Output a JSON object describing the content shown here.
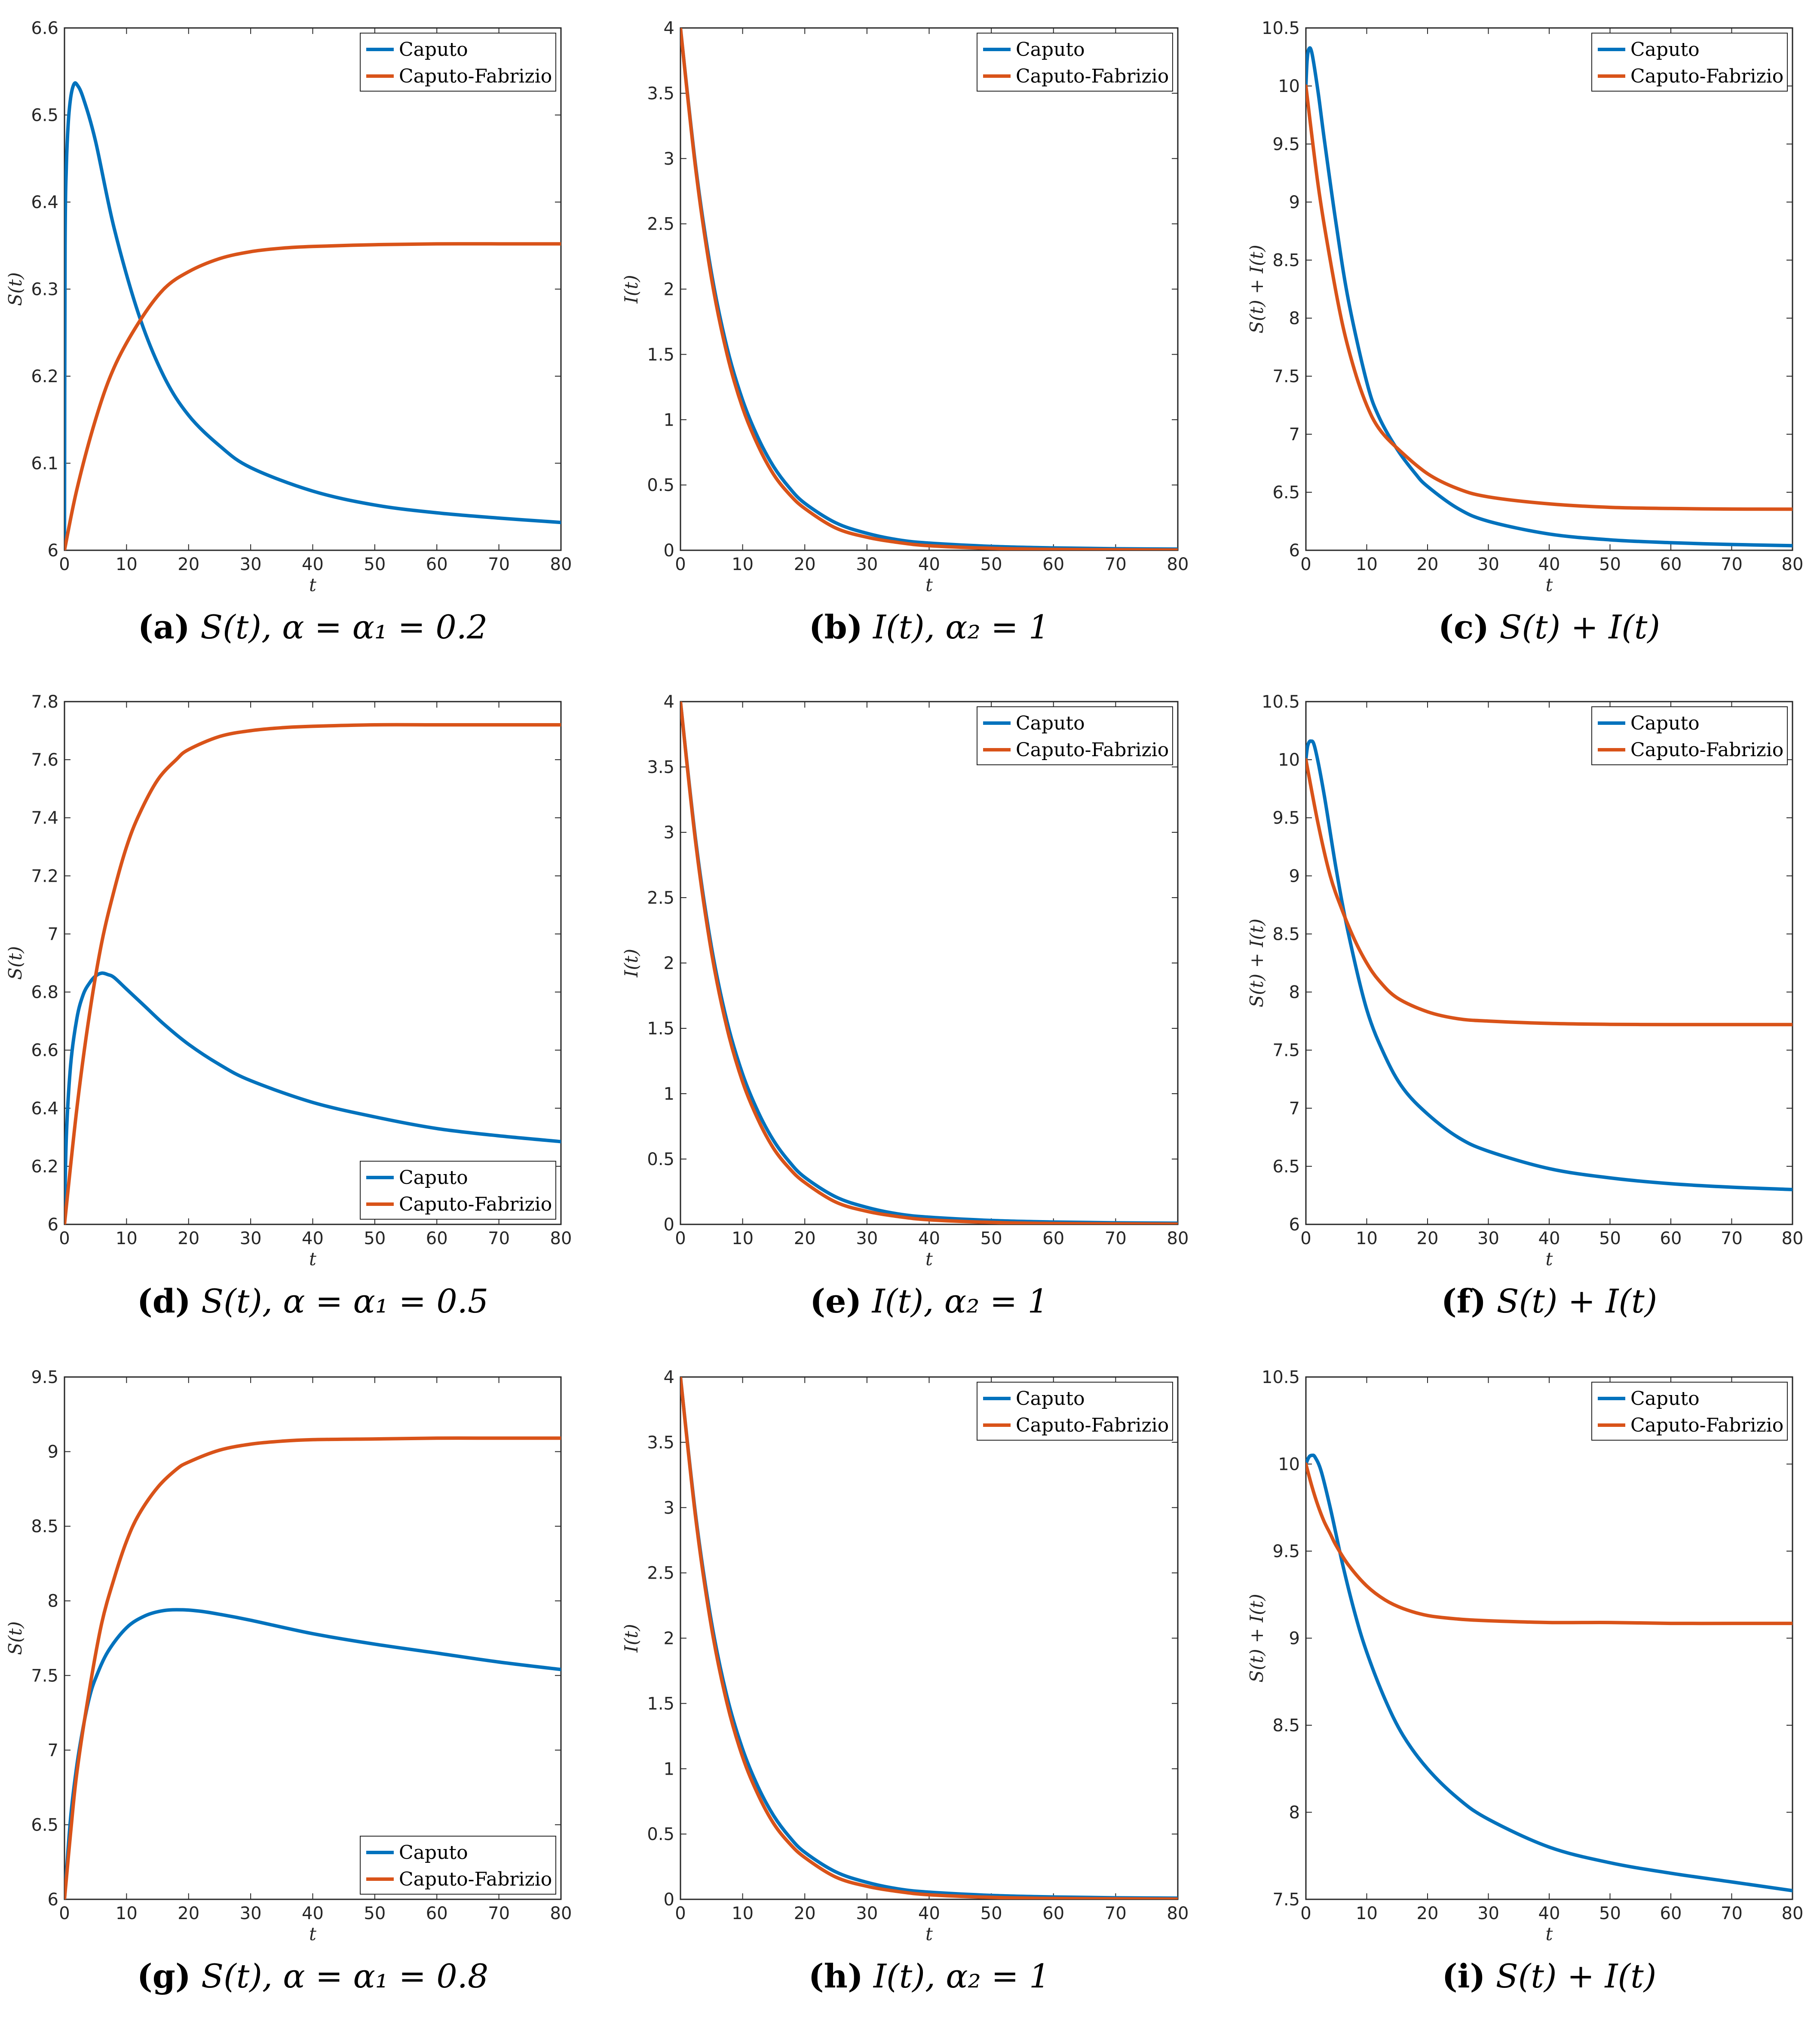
{
  "colors": {
    "caputo": "#0072BD",
    "caputo_fabrizio": "#D95319",
    "axis": "#262626"
  },
  "chart_data": [
    {
      "id": "a",
      "type": "line",
      "caption": {
        "label": "(a)",
        "text": "S(t), α = α₁ = 0.2"
      },
      "xlabel": "t",
      "ylabel": "S(t)",
      "xlim": [
        0,
        80
      ],
      "ylim": [
        6,
        6.6
      ],
      "xticks": [
        0,
        10,
        20,
        30,
        40,
        50,
        60,
        70,
        80
      ],
      "yticks": [
        6,
        6.1,
        6.2,
        6.3,
        6.4,
        6.5,
        6.6
      ],
      "legend": "top-right",
      "series": [
        {
          "name": "Caputo",
          "color": "#0072BD",
          "x": [
            0,
            0.1,
            0.3,
            0.6,
            1,
            1.5,
            2,
            3,
            5,
            8,
            12,
            16,
            20,
            25,
            30,
            40,
            50,
            60,
            70,
            80
          ],
          "y": [
            6.0,
            6.35,
            6.44,
            6.49,
            6.52,
            6.535,
            6.535,
            6.52,
            6.47,
            6.37,
            6.27,
            6.2,
            6.155,
            6.12,
            6.095,
            6.068,
            6.052,
            6.043,
            6.037,
            6.032
          ]
        },
        {
          "name": "Caputo-Fabrizio",
          "color": "#D95319",
          "x": [
            0,
            2,
            5,
            8,
            12,
            16,
            20,
            25,
            30,
            35,
            40,
            50,
            60,
            70,
            80
          ],
          "y": [
            6.0,
            6.07,
            6.15,
            6.21,
            6.262,
            6.3,
            6.32,
            6.335,
            6.343,
            6.347,
            6.349,
            6.351,
            6.352,
            6.352,
            6.352
          ]
        }
      ]
    },
    {
      "id": "b",
      "type": "line",
      "caption": {
        "label": "(b)",
        "text": "I(t), α₂ = 1"
      },
      "xlabel": "t",
      "ylabel": "I(t)",
      "xlim": [
        0,
        80
      ],
      "ylim": [
        0,
        4
      ],
      "xticks": [
        0,
        10,
        20,
        30,
        40,
        50,
        60,
        70,
        80
      ],
      "yticks": [
        0,
        0.5,
        1,
        1.5,
        2,
        2.5,
        3,
        3.5,
        4
      ],
      "legend": "top-right",
      "series": [
        {
          "name": "Caputo",
          "color": "#0072BD",
          "x": [
            0,
            2.5,
            5,
            7.5,
            10,
            12.5,
            15,
            17.5,
            20,
            25,
            30,
            35,
            40,
            50,
            60,
            70,
            80
          ],
          "y": [
            4.0,
            2.92,
            2.12,
            1.55,
            1.15,
            0.86,
            0.64,
            0.48,
            0.36,
            0.21,
            0.13,
            0.08,
            0.055,
            0.03,
            0.018,
            0.012,
            0.009
          ]
        },
        {
          "name": "Caputo-Fabrizio",
          "color": "#D95319",
          "x": [
            0,
            2.5,
            5,
            7.5,
            10,
            12.5,
            15,
            17.5,
            20,
            25,
            30,
            35,
            40,
            50,
            60,
            70,
            80
          ],
          "y": [
            4.0,
            2.9,
            2.08,
            1.5,
            1.09,
            0.8,
            0.58,
            0.43,
            0.32,
            0.17,
            0.1,
            0.06,
            0.035,
            0.015,
            0.007,
            0.004,
            0.002
          ]
        }
      ]
    },
    {
      "id": "c",
      "type": "line",
      "caption": {
        "label": "(c)",
        "text": "S(t) + I(t)"
      },
      "xlabel": "t",
      "ylabel": "S(t) + I(t)",
      "xlim": [
        0,
        80
      ],
      "ylim": [
        6,
        10.5
      ],
      "xticks": [
        0,
        10,
        20,
        30,
        40,
        50,
        60,
        70,
        80
      ],
      "yticks": [
        6,
        6.5,
        7,
        7.5,
        8,
        8.5,
        9,
        9.5,
        10,
        10.5
      ],
      "legend": "top-right",
      "series": [
        {
          "name": "Caputo",
          "color": "#0072BD",
          "x": [
            0,
            0.2,
            0.5,
            1,
            2,
            3,
            5,
            7,
            10,
            12,
            15,
            18,
            20,
            25,
            30,
            40,
            50,
            60,
            70,
            80
          ],
          "y": [
            10.0,
            10.22,
            10.32,
            10.28,
            9.95,
            9.55,
            8.8,
            8.15,
            7.45,
            7.15,
            6.87,
            6.66,
            6.55,
            6.36,
            6.25,
            6.14,
            6.09,
            6.065,
            6.05,
            6.04
          ]
        },
        {
          "name": "Caputo-Fabrizio",
          "color": "#D95319",
          "x": [
            0,
            2,
            4,
            6,
            8,
            10,
            12,
            15,
            20,
            25,
            30,
            40,
            50,
            60,
            70,
            80
          ],
          "y": [
            10.0,
            9.15,
            8.5,
            7.95,
            7.55,
            7.25,
            7.05,
            6.88,
            6.66,
            6.53,
            6.46,
            6.4,
            6.37,
            6.36,
            6.355,
            6.354
          ]
        }
      ]
    },
    {
      "id": "d",
      "type": "line",
      "caption": {
        "label": "(d)",
        "text": "S(t), α = α₁ = 0.5"
      },
      "xlabel": "t",
      "ylabel": "S(t)",
      "xlim": [
        0,
        80
      ],
      "ylim": [
        6,
        7.8
      ],
      "xticks": [
        0,
        10,
        20,
        30,
        40,
        50,
        60,
        70,
        80
      ],
      "yticks": [
        6,
        6.2,
        6.4,
        6.6,
        6.8,
        7,
        7.2,
        7.4,
        7.6,
        7.8
      ],
      "legend": "bottom-right",
      "series": [
        {
          "name": "Caputo",
          "color": "#0072BD",
          "x": [
            0,
            0.3,
            1,
            2,
            3,
            4,
            5,
            6,
            7,
            8,
            10,
            13,
            16,
            20,
            25,
            30,
            40,
            50,
            60,
            70,
            80
          ],
          "y": [
            6.0,
            6.3,
            6.55,
            6.71,
            6.79,
            6.83,
            6.855,
            6.865,
            6.86,
            6.85,
            6.81,
            6.75,
            6.69,
            6.62,
            6.55,
            6.495,
            6.42,
            6.37,
            6.33,
            6.305,
            6.285
          ]
        },
        {
          "name": "Caputo-Fabrizio",
          "color": "#D95319",
          "x": [
            0,
            2,
            4,
            6,
            8,
            10,
            12,
            15,
            18,
            20,
            25,
            30,
            35,
            40,
            50,
            60,
            70,
            80
          ],
          "y": [
            6.0,
            6.4,
            6.72,
            6.97,
            7.15,
            7.3,
            7.41,
            7.53,
            7.6,
            7.635,
            7.68,
            7.7,
            7.71,
            7.715,
            7.72,
            7.72,
            7.72,
            7.72
          ]
        }
      ]
    },
    {
      "id": "e",
      "type": "line",
      "caption": {
        "label": "(e)",
        "text": "I(t), α₂ = 1"
      },
      "xlabel": "t",
      "ylabel": "I(t)",
      "xlim": [
        0,
        80
      ],
      "ylim": [
        0,
        4
      ],
      "xticks": [
        0,
        10,
        20,
        30,
        40,
        50,
        60,
        70,
        80
      ],
      "yticks": [
        0,
        0.5,
        1,
        1.5,
        2,
        2.5,
        3,
        3.5,
        4
      ],
      "legend": "top-right",
      "series": [
        {
          "name": "Caputo",
          "color": "#0072BD",
          "x": [
            0,
            2.5,
            5,
            7.5,
            10,
            12.5,
            15,
            17.5,
            20,
            25,
            30,
            35,
            40,
            50,
            60,
            70,
            80
          ],
          "y": [
            4.0,
            2.92,
            2.12,
            1.55,
            1.15,
            0.86,
            0.64,
            0.48,
            0.36,
            0.21,
            0.13,
            0.08,
            0.055,
            0.03,
            0.018,
            0.012,
            0.009
          ]
        },
        {
          "name": "Caputo-Fabrizio",
          "color": "#D95319",
          "x": [
            0,
            2.5,
            5,
            7.5,
            10,
            12.5,
            15,
            17.5,
            20,
            25,
            30,
            35,
            40,
            50,
            60,
            70,
            80
          ],
          "y": [
            4.0,
            2.9,
            2.08,
            1.5,
            1.09,
            0.8,
            0.58,
            0.43,
            0.32,
            0.17,
            0.1,
            0.06,
            0.035,
            0.015,
            0.007,
            0.004,
            0.002
          ]
        }
      ]
    },
    {
      "id": "f",
      "type": "line",
      "caption": {
        "label": "(f)",
        "text": "S(t) + I(t)"
      },
      "xlabel": "t",
      "ylabel": "S(t) + I(t)",
      "xlim": [
        0,
        80
      ],
      "ylim": [
        6,
        10.5
      ],
      "xticks": [
        0,
        10,
        20,
        30,
        40,
        50,
        60,
        70,
        80
      ],
      "yticks": [
        6,
        6.5,
        7,
        7.5,
        8,
        8.5,
        9,
        9.5,
        10,
        10.5
      ],
      "legend": "top-right",
      "series": [
        {
          "name": "Caputo",
          "color": "#0072BD",
          "x": [
            0,
            0.3,
            0.8,
            1.5,
            3,
            5,
            7,
            10,
            13,
            16,
            20,
            25,
            30,
            40,
            50,
            60,
            70,
            80
          ],
          "y": [
            10.0,
            10.12,
            10.16,
            10.1,
            9.7,
            9.05,
            8.5,
            7.85,
            7.45,
            7.17,
            6.95,
            6.75,
            6.63,
            6.48,
            6.4,
            6.35,
            6.32,
            6.3
          ]
        },
        {
          "name": "Caputo-Fabrizio",
          "color": "#D95319",
          "x": [
            0,
            2,
            4,
            6,
            8,
            10,
            12,
            15,
            20,
            25,
            30,
            40,
            50,
            60,
            70,
            80
          ],
          "y": [
            10.0,
            9.45,
            9.0,
            8.7,
            8.45,
            8.25,
            8.1,
            7.95,
            7.83,
            7.77,
            7.75,
            7.73,
            7.722,
            7.72,
            7.72,
            7.72
          ]
        }
      ]
    },
    {
      "id": "g",
      "type": "line",
      "caption": {
        "label": "(g)",
        "text": "S(t), α = α₁ = 0.8"
      },
      "xlabel": "t",
      "ylabel": "S(t)",
      "xlim": [
        0,
        80
      ],
      "ylim": [
        6,
        9.5
      ],
      "xticks": [
        0,
        10,
        20,
        30,
        40,
        50,
        60,
        70,
        80
      ],
      "yticks": [
        6,
        6.5,
        7,
        7.5,
        8,
        8.5,
        9,
        9.5
      ],
      "legend": "bottom-right",
      "series": [
        {
          "name": "Caputo",
          "color": "#0072BD",
          "x": [
            0,
            1,
            2,
            3,
            4,
            5,
            7,
            10,
            13,
            16,
            19,
            22,
            25,
            30,
            40,
            50,
            60,
            70,
            80
          ],
          "y": [
            6.0,
            6.55,
            6.9,
            7.15,
            7.35,
            7.48,
            7.66,
            7.82,
            7.9,
            7.935,
            7.94,
            7.93,
            7.91,
            7.87,
            7.78,
            7.71,
            7.65,
            7.59,
            7.54
          ]
        },
        {
          "name": "Caputo-Fabrizio",
          "color": "#D95319",
          "x": [
            0,
            1,
            2,
            4,
            6,
            8,
            10,
            12,
            15,
            18,
            20,
            25,
            30,
            35,
            40,
            50,
            60,
            70,
            80
          ],
          "y": [
            6.0,
            6.45,
            6.85,
            7.4,
            7.85,
            8.15,
            8.4,
            8.58,
            8.76,
            8.88,
            8.93,
            9.01,
            9.05,
            9.07,
            9.08,
            9.085,
            9.09,
            9.09,
            9.09
          ]
        }
      ]
    },
    {
      "id": "h",
      "type": "line",
      "caption": {
        "label": "(h)",
        "text": "I(t), α₂ = 1"
      },
      "xlabel": "t",
      "ylabel": "I(t)",
      "xlim": [
        0,
        80
      ],
      "ylim": [
        0,
        4
      ],
      "xticks": [
        0,
        10,
        20,
        30,
        40,
        50,
        60,
        70,
        80
      ],
      "yticks": [
        0,
        0.5,
        1,
        1.5,
        2,
        2.5,
        3,
        3.5,
        4
      ],
      "legend": "top-right",
      "series": [
        {
          "name": "Caputo",
          "color": "#0072BD",
          "x": [
            0,
            2.5,
            5,
            7.5,
            10,
            12.5,
            15,
            17.5,
            20,
            25,
            30,
            35,
            40,
            50,
            60,
            70,
            80
          ],
          "y": [
            4.0,
            2.92,
            2.12,
            1.55,
            1.15,
            0.86,
            0.64,
            0.48,
            0.36,
            0.21,
            0.13,
            0.08,
            0.055,
            0.03,
            0.018,
            0.012,
            0.009
          ]
        },
        {
          "name": "Caputo-Fabrizio",
          "color": "#D95319",
          "x": [
            0,
            2.5,
            5,
            7.5,
            10,
            12.5,
            15,
            17.5,
            20,
            25,
            30,
            35,
            40,
            50,
            60,
            70,
            80
          ],
          "y": [
            4.0,
            2.9,
            2.08,
            1.5,
            1.09,
            0.8,
            0.58,
            0.43,
            0.32,
            0.17,
            0.1,
            0.06,
            0.035,
            0.015,
            0.007,
            0.004,
            0.002
          ]
        }
      ]
    },
    {
      "id": "i",
      "type": "line",
      "caption": {
        "label": "(i)",
        "text": "S(t) + I(t)"
      },
      "xlabel": "t",
      "ylabel": "S(t) + I(t)",
      "xlim": [
        0,
        80
      ],
      "ylim": [
        7.5,
        10.5
      ],
      "xticks": [
        0,
        10,
        20,
        30,
        40,
        50,
        60,
        70,
        80
      ],
      "yticks": [
        7.5,
        8,
        8.5,
        9,
        9.5,
        10,
        10.5
      ],
      "legend": "top-right",
      "series": [
        {
          "name": "Caputo",
          "color": "#0072BD",
          "x": [
            0,
            0.5,
            1,
            1.5,
            2.5,
            4,
            6,
            8,
            10,
            13,
            16,
            20,
            25,
            30,
            40,
            50,
            60,
            70,
            80
          ],
          "y": [
            10.0,
            10.04,
            10.05,
            10.04,
            9.96,
            9.75,
            9.43,
            9.15,
            8.92,
            8.65,
            8.44,
            8.25,
            8.08,
            7.96,
            7.8,
            7.71,
            7.65,
            7.6,
            7.55
          ]
        },
        {
          "name": "Caputo-Fabrizio",
          "color": "#D95319",
          "x": [
            0,
            1,
            2,
            3,
            4,
            5,
            7,
            10,
            13,
            16,
            20,
            25,
            30,
            40,
            50,
            60,
            70,
            80
          ],
          "y": [
            10.0,
            9.87,
            9.76,
            9.67,
            9.6,
            9.53,
            9.42,
            9.3,
            9.22,
            9.17,
            9.13,
            9.11,
            9.1,
            9.09,
            9.09,
            9.085,
            9.085,
            9.085
          ]
        }
      ]
    }
  ]
}
